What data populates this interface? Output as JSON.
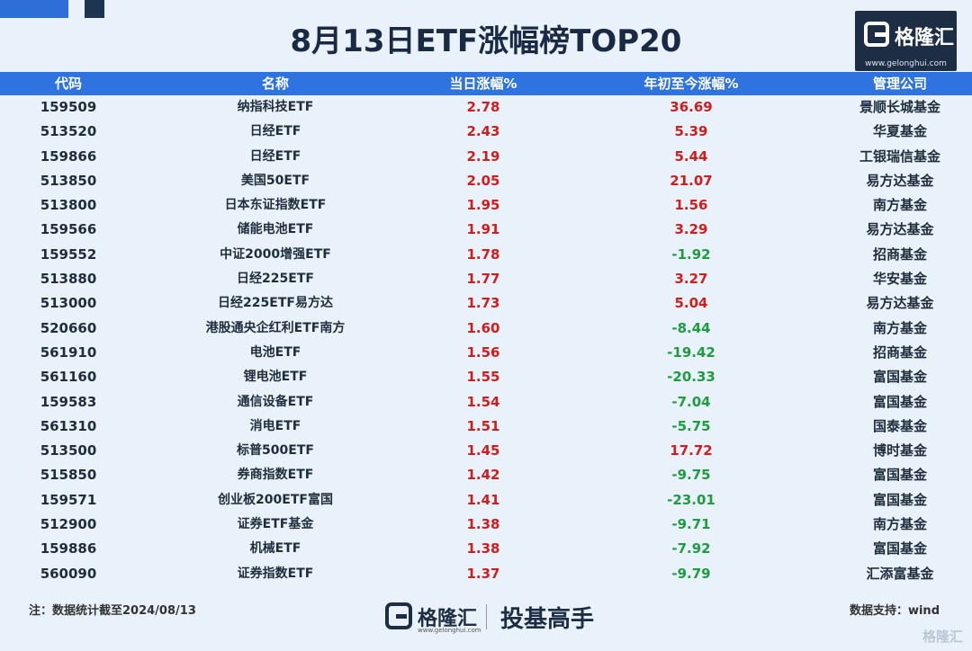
{
  "title": "8月13日ETF涨幅榜TOP20",
  "logo": {
    "text": "格隆汇",
    "url": "www.gelonghui.com"
  },
  "headers": {
    "code": "代码",
    "name": "名称",
    "day": "当日涨幅%",
    "ytd": "年初至今涨幅%",
    "manager": "管理公司"
  },
  "rows": [
    {
      "code": "159509",
      "name": "纳指科技ETF",
      "day": "2.78",
      "ytd": "36.69",
      "manager": "景顺长城基金"
    },
    {
      "code": "513520",
      "name": "日经ETF",
      "day": "2.43",
      "ytd": "5.39",
      "manager": "华夏基金"
    },
    {
      "code": "159866",
      "name": "日经ETF",
      "day": "2.19",
      "ytd": "5.44",
      "manager": "工银瑞信基金"
    },
    {
      "code": "513850",
      "name": "美国50ETF",
      "day": "2.05",
      "ytd": "21.07",
      "manager": "易方达基金"
    },
    {
      "code": "513800",
      "name": "日本东证指数ETF",
      "day": "1.95",
      "ytd": "1.56",
      "manager": "南方基金"
    },
    {
      "code": "159566",
      "name": "储能电池ETF",
      "day": "1.91",
      "ytd": "3.29",
      "manager": "易方达基金"
    },
    {
      "code": "159552",
      "name": "中证2000增强ETF",
      "day": "1.78",
      "ytd": "-1.92",
      "manager": "招商基金"
    },
    {
      "code": "513880",
      "name": "日经225ETF",
      "day": "1.77",
      "ytd": "3.27",
      "manager": "华安基金"
    },
    {
      "code": "513000",
      "name": "日经225ETF易方达",
      "day": "1.73",
      "ytd": "5.04",
      "manager": "易方达基金"
    },
    {
      "code": "520660",
      "name": "港股通央企红利ETF南方",
      "day": "1.60",
      "ytd": "-8.44",
      "manager": "南方基金"
    },
    {
      "code": "561910",
      "name": "电池ETF",
      "day": "1.56",
      "ytd": "-19.42",
      "manager": "招商基金"
    },
    {
      "code": "561160",
      "name": "锂电池ETF",
      "day": "1.55",
      "ytd": "-20.33",
      "manager": "富国基金"
    },
    {
      "code": "159583",
      "name": "通信设备ETF",
      "day": "1.54",
      "ytd": "-7.04",
      "manager": "富国基金"
    },
    {
      "code": "561310",
      "name": "消电ETF",
      "day": "1.51",
      "ytd": "-5.75",
      "manager": "国泰基金"
    },
    {
      "code": "513500",
      "name": "标普500ETF",
      "day": "1.45",
      "ytd": "17.72",
      "manager": "博时基金"
    },
    {
      "code": "515850",
      "name": "券商指数ETF",
      "day": "1.42",
      "ytd": "-9.75",
      "manager": "富国基金"
    },
    {
      "code": "159571",
      "name": "创业板200ETF富国",
      "day": "1.41",
      "ytd": "-23.01",
      "manager": "富国基金"
    },
    {
      "code": "512900",
      "name": "证券ETF基金",
      "day": "1.38",
      "ytd": "-9.71",
      "manager": "南方基金"
    },
    {
      "code": "159886",
      "name": "机械ETF",
      "day": "1.38",
      "ytd": "-7.92",
      "manager": "富国基金"
    },
    {
      "code": "560090",
      "name": "证券指数ETF",
      "day": "1.37",
      "ytd": "-9.79",
      "manager": "汇添富基金"
    }
  ],
  "footer": {
    "note": "注：数据统计截至2024/08/13",
    "source": "数据支持：wind",
    "logo_text": "格隆汇",
    "logo_url": "www.gelonghui.com",
    "slogan": "投基高手"
  },
  "watermark": "格隆汇",
  "colors": {
    "header_bg": "#2f73e0",
    "positive": "#d21d1d",
    "negative": "#1d9d3f",
    "brand": "#1d2d44"
  }
}
